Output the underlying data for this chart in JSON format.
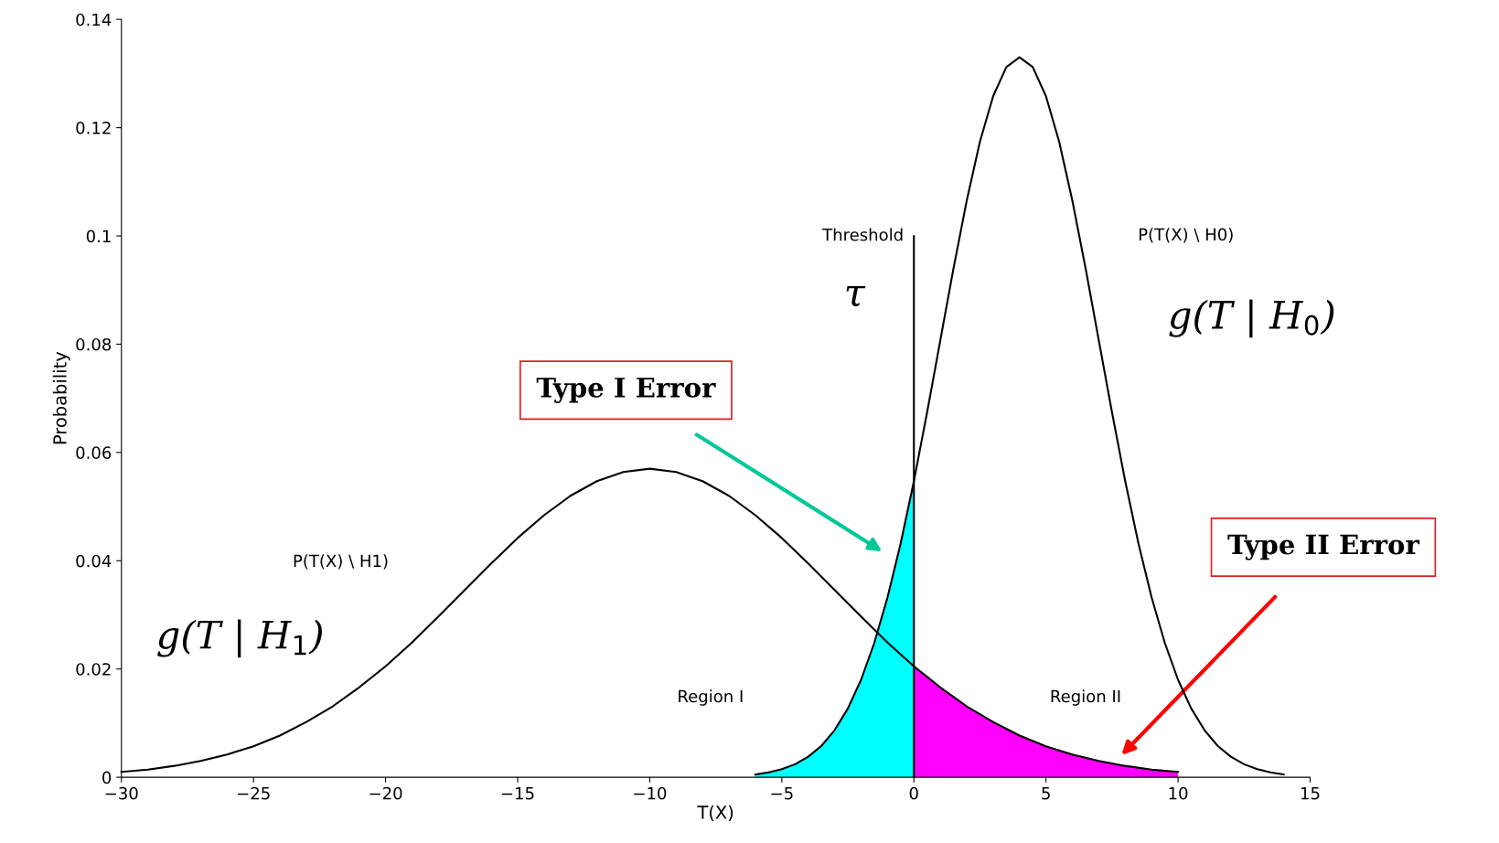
{
  "chart_data": {
    "type": "line",
    "xlabel": "T(X)",
    "ylabel": "Probability",
    "xlim": [
      -30,
      15
    ],
    "ylim": [
      0,
      0.14
    ],
    "xticks": [
      {
        "value": -30,
        "label": "−30"
      },
      {
        "value": -25,
        "label": "−25"
      },
      {
        "value": -20,
        "label": "−20"
      },
      {
        "value": -15,
        "label": "−15"
      },
      {
        "value": -10,
        "label": "−10"
      },
      {
        "value": -5,
        "label": "−5"
      },
      0,
      5,
      10,
      15
    ],
    "yticks": [
      0,
      0.02,
      0.04,
      0.06,
      0.08,
      0.1,
      0.12,
      0.14
    ],
    "marker": "none",
    "line_style": "solid",
    "series": [
      {
        "type": "area",
        "color": "#00ffff",
        "x": [
          -6,
          -5.5,
          -5,
          -4.5,
          -4,
          -3.5,
          -3,
          -2.5,
          -2,
          -1.5,
          -1,
          -0.5,
          0
        ],
        "values": [
          0.0005,
          0.0009,
          0.0015,
          0.0024,
          0.0038,
          0.0058,
          0.0087,
          0.0127,
          0.018,
          0.0248,
          0.0332,
          0.0432,
          0.0547
        ]
      },
      {
        "type": "area",
        "color": "#ff00ff",
        "x": [
          0,
          1,
          2,
          3,
          4,
          5,
          6,
          7,
          8,
          9,
          10
        ],
        "values": [
          0.0205,
          0.0166,
          0.0131,
          0.0102,
          0.0077,
          0.0057,
          0.0042,
          0.003,
          0.0021,
          0.0014,
          0.001
        ]
      },
      {
        "color": "#000000",
        "x": [
          -30,
          -29,
          -28,
          -27,
          -26,
          -25,
          -24,
          -23,
          -22,
          -21,
          -20,
          -19,
          -18,
          -17,
          -16,
          -15,
          -14,
          -13,
          -12,
          -11,
          -10,
          -9,
          -8,
          -7,
          -6,
          -5,
          -4,
          -3,
          -2,
          -1,
          0,
          1,
          2,
          3,
          4,
          5,
          6,
          7,
          8,
          9,
          10
        ],
        "values": [
          0.001,
          0.0014,
          0.0021,
          0.003,
          0.0042,
          0.0057,
          0.0077,
          0.0102,
          0.0131,
          0.0166,
          0.0205,
          0.0249,
          0.0297,
          0.0346,
          0.0395,
          0.0442,
          0.0484,
          0.052,
          0.0547,
          0.0564,
          0.057,
          0.0564,
          0.0547,
          0.052,
          0.0484,
          0.0442,
          0.0395,
          0.0346,
          0.0297,
          0.0249,
          0.0205,
          0.0166,
          0.0131,
          0.0102,
          0.0077,
          0.0057,
          0.0042,
          0.003,
          0.0021,
          0.0014,
          0.001
        ]
      },
      {
        "color": "#000000",
        "x": [
          -6,
          -5.5,
          -5,
          -4.5,
          -4,
          -3.5,
          -3,
          -2.5,
          -2,
          -1.5,
          -1,
          -0.5,
          0,
          0.5,
          1,
          1.5,
          2,
          2.5,
          3,
          3.5,
          4,
          4.5,
          5,
          5.5,
          6,
          6.5,
          7,
          7.5,
          8,
          8.5,
          9,
          9.5,
          10,
          10.5,
          11,
          11.5,
          12,
          12.5,
          13,
          13.5,
          14
        ],
        "values": [
          0.0005,
          0.0009,
          0.0015,
          0.0024,
          0.0038,
          0.0058,
          0.0087,
          0.0127,
          0.018,
          0.0248,
          0.0332,
          0.0432,
          0.0547,
          0.0674,
          0.0807,
          0.094,
          0.1065,
          0.1174,
          0.1258,
          0.1312,
          0.133,
          0.1312,
          0.1258,
          0.1174,
          0.1065,
          0.094,
          0.0807,
          0.0674,
          0.0547,
          0.0432,
          0.0332,
          0.0248,
          0.018,
          0.0127,
          0.0087,
          0.0058,
          0.0038,
          0.0024,
          0.0015,
          0.0009,
          0.0005
        ]
      }
    ],
    "ref_lines": [
      {
        "axis": "x",
        "value": 0,
        "label": "Threshold",
        "color": "#000000"
      }
    ],
    "annotations": [
      "τ",
      "P(T(X) \\ H0)",
      "g(T | H$_{0}$)",
      "P(T(X) \\ H1)",
      "g(T | H$_{1}$)",
      "Region I",
      "Region II",
      "Type I Error",
      "Type II Error"
    ]
  }
}
